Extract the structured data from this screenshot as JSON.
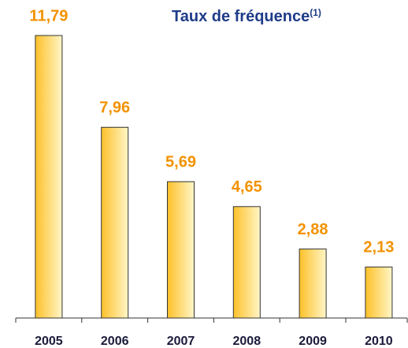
{
  "chart_data": {
    "type": "bar",
    "title": "Taux de fréquence",
    "title_superscript": "(1)",
    "categories": [
      "2005",
      "2006",
      "2007",
      "2008",
      "2009",
      "2010"
    ],
    "values": [
      11.79,
      7.96,
      5.69,
      4.65,
      2.88,
      2.13
    ],
    "value_labels": [
      "11,79",
      "7,96",
      "5,69",
      "4,65",
      "2,88",
      "2,13"
    ],
    "color": "#fdc12a",
    "label_color": "#f39200",
    "title_color": "#1f3c88"
  }
}
